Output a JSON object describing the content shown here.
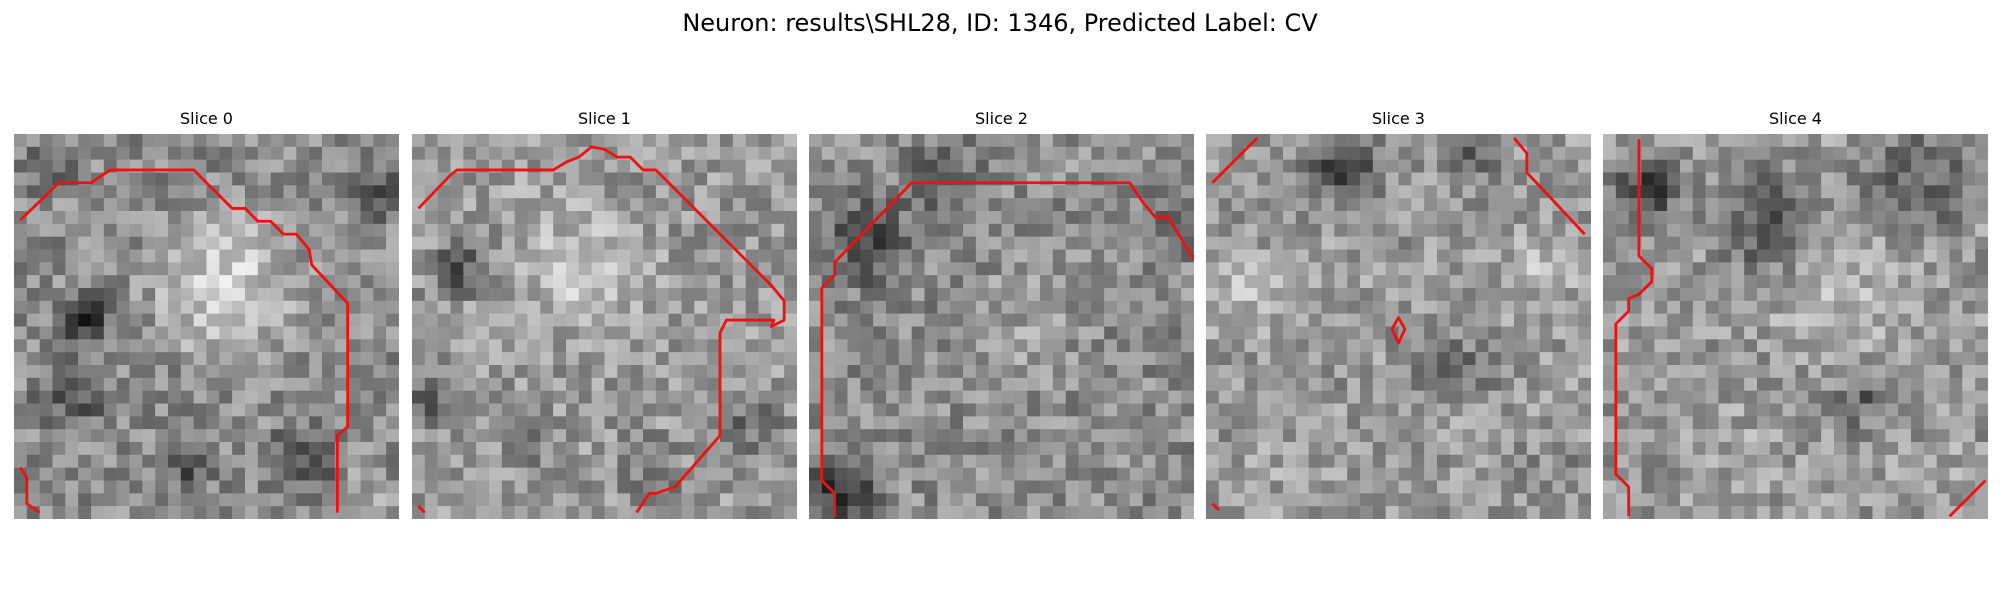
{
  "figure": {
    "title": "Neuron: results\\SHL28, ID: 1346, Predicted Label: CV"
  },
  "panels": [
    {
      "title": "Slice 0"
    },
    {
      "title": "Slice 1"
    },
    {
      "title": "Slice 2"
    },
    {
      "title": "Slice 3"
    },
    {
      "title": "Slice 4"
    }
  ],
  "colors": {
    "contour": "#ee1111",
    "background": "#ffffff",
    "colormap": "gray"
  }
}
